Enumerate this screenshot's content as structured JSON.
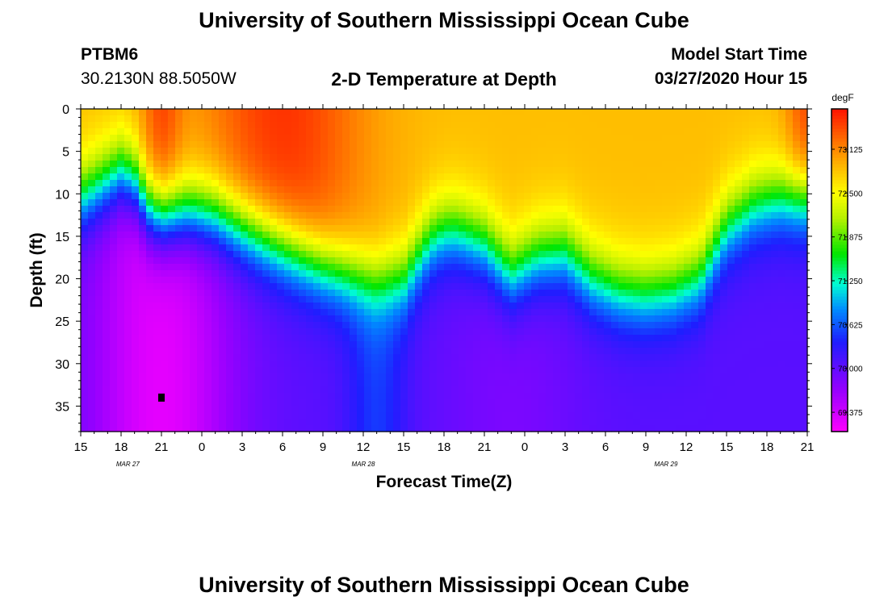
{
  "page": {
    "top_title": "University of Southern Mississippi Ocean Cube",
    "bottom_title": "University of Southern Mississippi Ocean Cube",
    "station_id": "PTBM6",
    "station_coords": "30.2130N 88.5050W",
    "model_start_label": "Model Start Time",
    "model_start_value": "03/27/2020 Hour 15"
  },
  "chart_data": {
    "type": "heatmap",
    "title": "2-D Temperature at Depth",
    "xlabel": "Forecast Time(Z)",
    "ylabel": "Depth (ft)",
    "x_tick_labels": [
      "15",
      "18",
      "21",
      "0",
      "3",
      "6",
      "9",
      "12",
      "15",
      "18",
      "21",
      "0",
      "3",
      "6",
      "9",
      "12",
      "15",
      "18",
      "21"
    ],
    "x_range_hours": [
      0,
      54
    ],
    "date_labels": [
      {
        "text": "MAR 27",
        "hour": 3.5
      },
      {
        "text": "MAR 28",
        "hour": 21
      },
      {
        "text": "MAR 29",
        "hour": 43.5
      }
    ],
    "y_ticks": [
      0,
      5,
      10,
      15,
      20,
      25,
      30,
      35
    ],
    "y_range_ft": [
      0,
      38
    ],
    "colorbar": {
      "unit": "degF",
      "min": 69.1,
      "max": 73.7,
      "tick_values": [
        69.375,
        70.0,
        70.625,
        71.25,
        71.875,
        72.5,
        73.125
      ],
      "tick_labels": [
        "69.375",
        "70.000",
        "70.625",
        "71.250",
        "71.875",
        "72.500",
        "73.125"
      ]
    },
    "field_description": "Depth in ft (0 top, 38 bottom) of the 71.6 degF isotherm over forecast hours since 03/27 15Z; surface warm 72.9-73.7 degF, deep water cold 69.2-70.4 degF",
    "isotherm_depth_ft": {
      "hours": [
        0,
        2,
        3,
        4,
        5,
        6,
        8,
        10,
        12,
        14,
        16,
        18,
        20,
        22,
        24,
        26,
        27,
        28,
        30,
        32,
        33,
        34,
        36,
        38,
        40,
        42,
        44,
        46,
        48,
        50,
        52,
        54
      ],
      "depths": [
        10.5,
        8.5,
        7.5,
        8.5,
        11.5,
        12.5,
        12,
        12.5,
        14,
        15.5,
        17,
        18.5,
        19.5,
        20.5,
        20,
        15.5,
        14.5,
        14.5,
        16,
        19.5,
        18.5,
        17.5,
        17,
        20,
        21.5,
        22,
        21.5,
        20,
        14,
        11.5,
        10.5,
        10.5
      ]
    },
    "marker": {
      "hour": 6,
      "depth_ft": 34
    }
  }
}
